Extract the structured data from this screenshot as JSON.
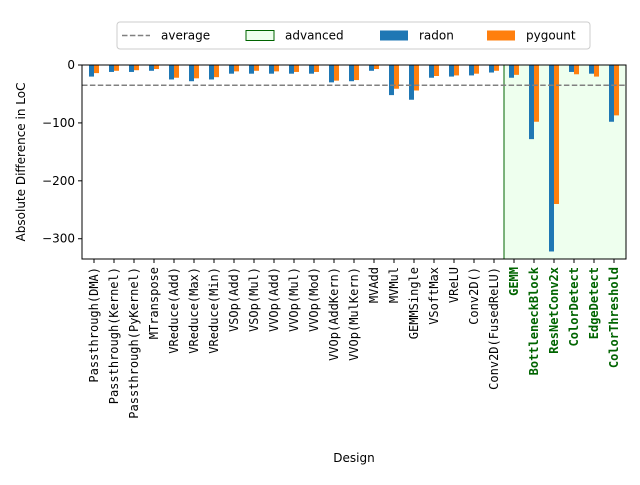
{
  "chart_data": {
    "type": "bar",
    "xlabel": "Design",
    "ylabel": "Absolute Difference in LoC",
    "ylim": [
      -335,
      0
    ],
    "yticks": [
      0,
      -100,
      -200,
      -300
    ],
    "ytick_labels": [
      "0",
      "−100",
      "−200",
      "−300"
    ],
    "average": -35,
    "advanced_start_index": 21,
    "legend_position": "top-center",
    "legend": {
      "average": "average",
      "advanced": "advanced",
      "radon": "radon",
      "pygount": "pygount"
    },
    "colors": {
      "radon": "#1f77b4",
      "pygount": "#ff7f0e",
      "average": "#808080",
      "advanced_fill": "#eeffee",
      "advanced_edge": "#006400",
      "advanced_label": "#006400"
    },
    "categories": [
      "Passthrough(DMA)",
      "Passthrough(Kernel)",
      "Passthrough(PyKernel)",
      "MTranspose",
      "VReduce(Add)",
      "VReduce(Max)",
      "VReduce(Min)",
      "VSOp(Add)",
      "VSOp(Mul)",
      "VVOp(Add)",
      "VVOp(Mul)",
      "VVOp(Mod)",
      "VVOp(AddKern)",
      "VVOp(MulKern)",
      "MVAdd",
      "MVMul",
      "GEMMSingle",
      "VSoftMax",
      "VReLU",
      "Conv2D()",
      "Conv2D(FusedReLU)",
      "GEMM",
      "BottleneckBlock",
      "ResNetConv2x",
      "ColorDetect",
      "EdgeDetect",
      "ColorThreshold"
    ],
    "series": [
      {
        "name": "radon",
        "values": [
          -20,
          -12,
          -12,
          -10,
          -25,
          -28,
          -25,
          -15,
          -15,
          -15,
          -15,
          -15,
          -30,
          -28,
          -10,
          -52,
          -60,
          -22,
          -20,
          -18,
          -13,
          -22,
          -128,
          -322,
          -12,
          -15,
          -98
        ]
      },
      {
        "name": "pygount",
        "values": [
          -14,
          -10,
          -9,
          -7,
          -22,
          -23,
          -21,
          -11,
          -10,
          -11,
          -12,
          -12,
          -27,
          -26,
          -7,
          -41,
          -44,
          -19,
          -18,
          -15,
          -10,
          -17,
          -98,
          -240,
          -16,
          -20,
          -87
        ]
      }
    ]
  }
}
